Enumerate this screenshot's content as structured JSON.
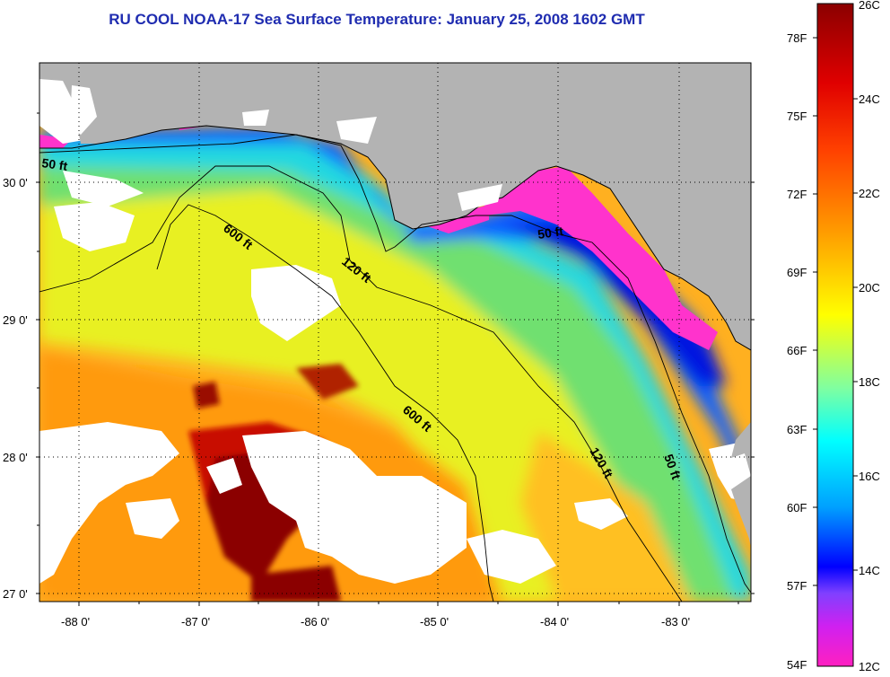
{
  "title": "RU COOL  NOAA-17  Sea Surface Temperature:  January 25, 2008 1602 GMT",
  "map": {
    "latitude_labels": [
      "30 0'",
      "29 0'",
      "28 0'",
      "27 0'"
    ],
    "longitude_labels": [
      "-88 0'",
      "-87 0'",
      "-86 0'",
      "-85 0'",
      "-84 0'",
      "-83 0'"
    ],
    "isobath_labels": [
      "50 ft",
      "600 ft",
      "120 ft",
      "50 ft",
      "600 ft",
      "120 ft",
      "50 ft"
    ],
    "land_color": "#b3b3b3",
    "cloud_color": "#ffffff"
  },
  "colorbar": {
    "celsius_labels": [
      "26C",
      "24C",
      "22C",
      "20C",
      "18C",
      "16C",
      "14C",
      "12C"
    ],
    "fahrenheit_labels": [
      "78F",
      "75F",
      "72F",
      "69F",
      "66F",
      "63F",
      "60F",
      "57F",
      "54F"
    ],
    "gradient_stops": [
      "#8b0000",
      "#ff0000",
      "#ff8c00",
      "#ffff00",
      "#00ffff",
      "#0080ff",
      "#0000ff",
      "#ff00cc"
    ]
  }
}
